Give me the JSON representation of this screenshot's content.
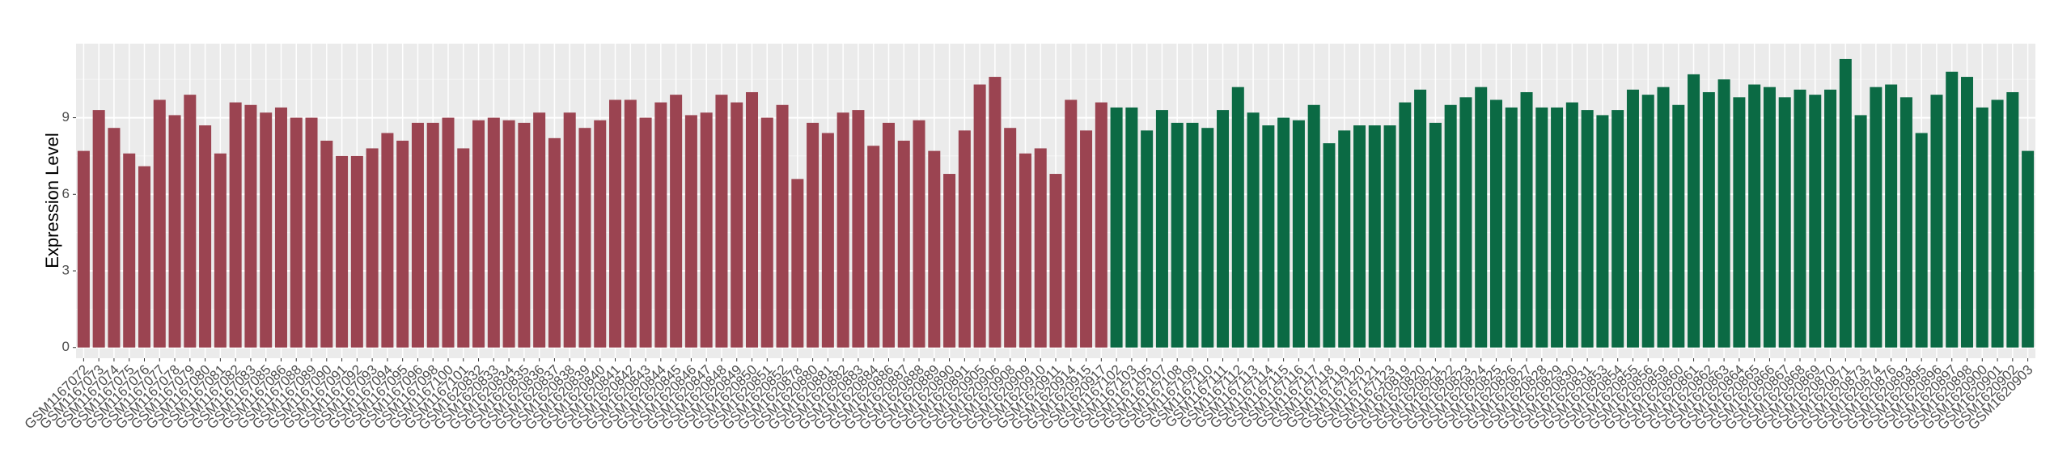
{
  "chart_data": {
    "type": "bar",
    "y_label": "Expression Level",
    "categories": [
      "GSM1167072",
      "GSM1167073",
      "GSM1167074",
      "GSM1167075",
      "GSM1167076",
      "GSM1167077",
      "GSM1167078",
      "GSM1167079",
      "GSM1167080",
      "GSM1167081",
      "GSM1167082",
      "GSM1167083",
      "GSM1167085",
      "GSM1167086",
      "GSM1167088",
      "GSM1167089",
      "GSM1167090",
      "GSM1167091",
      "GSM1167092",
      "GSM1167093",
      "GSM1167094",
      "GSM1167095",
      "GSM1167096",
      "GSM1167098",
      "GSM1167100",
      "GSM1167101",
      "GSM1620832",
      "GSM1620833",
      "GSM1620834",
      "GSM1620835",
      "GSM1620836",
      "GSM1620837",
      "GSM1620838",
      "GSM1620839",
      "GSM1620840",
      "GSM1620841",
      "GSM1620842",
      "GSM1620843",
      "GSM1620844",
      "GSM1620845",
      "GSM1620846",
      "GSM1620847",
      "GSM1620848",
      "GSM1620849",
      "GSM1620850",
      "GSM1620851",
      "GSM1620852",
      "GSM1620878",
      "GSM1620880",
      "GSM1620881",
      "GSM1620882",
      "GSM1620883",
      "GSM1620884",
      "GSM1620886",
      "GSM1620887",
      "GSM1620888",
      "GSM1620889",
      "GSM1620890",
      "GSM1620891",
      "GSM1620905",
      "GSM1620906",
      "GSM1620908",
      "GSM1620909",
      "GSM1620910",
      "GSM1620911",
      "GSM1620914",
      "GSM1620915",
      "GSM1620917",
      "GSM1167102",
      "GSM1167103",
      "GSM1167105",
      "GSM1167107",
      "GSM1167108",
      "GSM1167109",
      "GSM1167110",
      "GSM1167111",
      "GSM1167112",
      "GSM1167113",
      "GSM1167114",
      "GSM1167115",
      "GSM1167116",
      "GSM1167117",
      "GSM1167118",
      "GSM1167119",
      "GSM1167120",
      "GSM1167121",
      "GSM1167123",
      "GSM1620819",
      "GSM1620820",
      "GSM1620821",
      "GSM1620822",
      "GSM1620823",
      "GSM1620824",
      "GSM1620825",
      "GSM1620826",
      "GSM1620827",
      "GSM1620828",
      "GSM1620829",
      "GSM1620830",
      "GSM1620831",
      "GSM1620853",
      "GSM1620854",
      "GSM1620855",
      "GSM1620856",
      "GSM1620859",
      "GSM1620860",
      "GSM1620861",
      "GSM1620862",
      "GSM1620863",
      "GSM1620864",
      "GSM1620865",
      "GSM1620866",
      "GSM1620867",
      "GSM1620868",
      "GSM1620869",
      "GSM1620870",
      "GSM1620871",
      "GSM1620873",
      "GSM1620874",
      "GSM1620876",
      "GSM1620893",
      "GSM1620895",
      "GSM1620896",
      "GSM1620897",
      "GSM1620898",
      "GSM1620900",
      "GSM1620901",
      "GSM1620902",
      "GSM1620903"
    ],
    "series": [
      {
        "color": "#9b4451",
        "values": [
          7.7,
          9.3,
          8.6,
          7.6,
          7.1,
          9.7,
          9.1,
          9.9,
          8.7,
          7.6,
          9.6,
          9.5,
          9.2,
          9.4,
          9.0,
          9.0,
          8.1,
          7.5,
          7.5,
          7.8,
          8.4,
          8.1,
          8.8,
          8.8,
          9.0,
          7.8,
          8.9,
          9.0,
          8.9,
          8.8,
          9.2,
          8.2,
          9.2,
          8.6,
          8.9,
          9.7,
          9.7,
          9.0,
          9.6,
          9.9,
          9.1,
          9.2,
          9.9,
          9.6,
          10.0,
          9.0,
          9.5,
          6.6,
          8.8,
          8.4,
          9.2,
          9.3,
          7.9,
          8.8,
          8.1,
          8.9,
          7.7,
          6.8,
          8.5,
          10.3,
          10.6,
          8.6,
          7.6,
          7.8,
          6.8,
          9.7,
          8.5,
          9.6,
          null,
          null,
          null,
          null,
          null,
          null,
          null,
          null,
          null,
          null,
          null,
          null,
          null,
          null,
          null,
          null,
          null,
          null,
          null,
          null,
          null,
          null,
          null,
          null,
          null,
          null,
          null,
          null,
          null,
          null,
          null,
          null,
          null,
          null,
          null,
          null,
          null,
          null,
          null,
          null,
          null,
          null,
          null,
          null,
          null,
          null,
          null,
          null,
          null,
          null,
          null,
          null,
          null,
          null,
          null,
          null,
          null,
          null,
          null,
          null,
          null
        ]
      },
      {
        "color": "#0b6a44",
        "values": [
          null,
          null,
          null,
          null,
          null,
          null,
          null,
          null,
          null,
          null,
          null,
          null,
          null,
          null,
          null,
          null,
          null,
          null,
          null,
          null,
          null,
          null,
          null,
          null,
          null,
          null,
          null,
          null,
          null,
          null,
          null,
          null,
          null,
          null,
          null,
          null,
          null,
          null,
          null,
          null,
          null,
          null,
          null,
          null,
          null,
          null,
          null,
          null,
          null,
          null,
          null,
          null,
          null,
          null,
          null,
          null,
          null,
          null,
          null,
          null,
          null,
          null,
          null,
          null,
          null,
          null,
          null,
          null,
          9.4,
          9.4,
          8.5,
          9.3,
          8.8,
          8.8,
          8.6,
          9.3,
          10.2,
          9.2,
          8.7,
          9.0,
          8.9,
          9.5,
          8.0,
          8.5,
          8.7,
          8.7,
          8.7,
          9.6,
          10.1,
          8.8,
          9.5,
          9.8,
          10.2,
          9.7,
          9.4,
          10.0,
          9.4,
          9.4,
          9.6,
          9.3,
          9.1,
          9.3,
          10.1,
          9.9,
          10.2,
          9.5,
          10.7,
          10.0,
          10.5,
          9.8,
          10.3,
          10.2,
          9.8,
          10.1,
          9.9,
          10.1,
          11.3,
          9.1,
          10.2,
          10.3,
          9.8,
          8.4,
          9.9,
          10.8,
          10.6,
          9.4,
          9.7,
          10.0,
          7.7
        ]
      }
    ],
    "ylim": [
      -0.42,
      11.9
    ],
    "yticks": [
      0,
      3,
      6,
      9
    ],
    "grid": true
  }
}
